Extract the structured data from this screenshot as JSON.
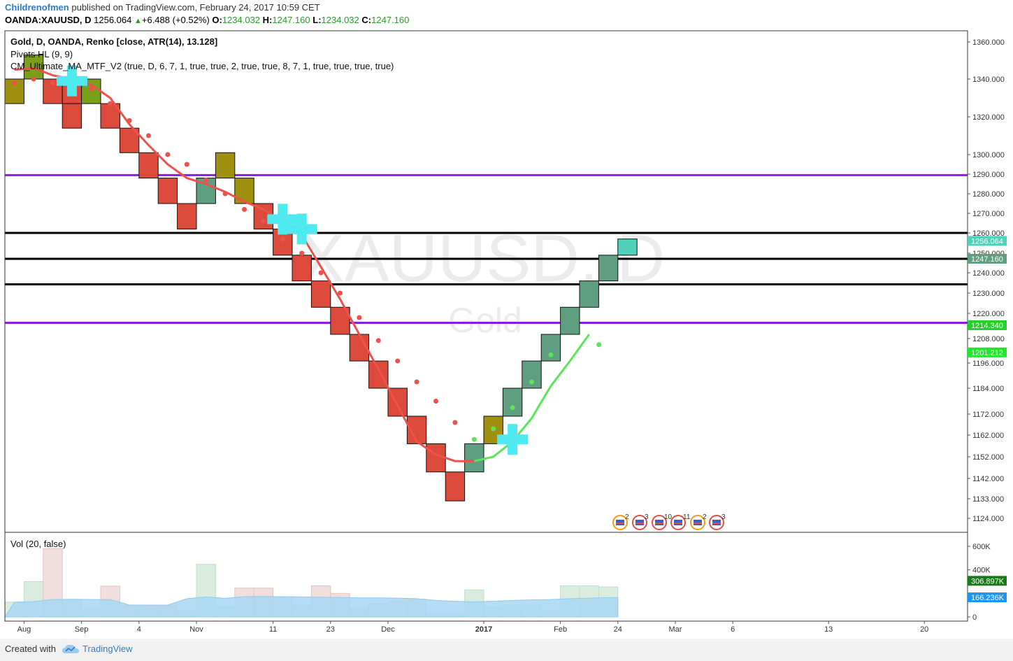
{
  "header": {
    "author": "Childrenofmen",
    "published": "published on TradingView.com, February 24, 2017 10:59 CET",
    "symbol_line": "OANDA:XAUUSD, D",
    "last": "1256.064",
    "change": "+6.488 (+0.52%)",
    "o_label": "O:",
    "o": "1234.032",
    "h_label": "H:",
    "h": "1247.160",
    "l_label": "L:",
    "l": "1234.032",
    "c_label": "C:",
    "c": "1247.160"
  },
  "legend": {
    "main": "Gold, D, OANDA, Renko [close, ATR(14), 13.128]",
    "pivots": "Pivots HL (9, 9)",
    "ma": "CM_Ultimate_MA_MTF_V2 (true, D, 6, 7, 1, true, true, 2, true, true, 8, 7, 1, true, true, true, true)",
    "volume": "Vol (20, false)"
  },
  "watermark": {
    "symbol": "XAUUSD, D",
    "name": "Gold"
  },
  "footer": {
    "created": "Created with",
    "brand": "TradingView"
  },
  "colors": {
    "up": "#5f9e80",
    "down": "#dc4a3c",
    "olive": "#a0900f",
    "lime": "#7aa01a",
    "teal": "#4fd1bb",
    "ma_down": "#f0504a",
    "ma_up": "#5ae55a",
    "purple": "#8a1ce6",
    "cross": "#4feaf0",
    "vol_up": "#d9ecdf",
    "vol_down": "#f1dede",
    "vol_ma": "#a8d8f5"
  },
  "events": {
    "icon": "flag-event-icon",
    "counts": [
      "2",
      "3",
      "10",
      "11",
      "2",
      "3"
    ]
  },
  "chart_data": {
    "type": "renko",
    "y_axis": {
      "labels": [
        "1360.000",
        "1340.000",
        "1320.000",
        "1300.000",
        "1290.000",
        "1280.000",
        "1270.000",
        "1260.000",
        "1250.000",
        "1240.000",
        "1230.000",
        "1220.000",
        "1208.000",
        "1196.000",
        "1184.000",
        "1172.000",
        "1162.000",
        "1152.000",
        "1142.000",
        "1133.000",
        "1124.000"
      ],
      "label_values": [
        1360,
        1340,
        1320,
        1300,
        1290,
        1280,
        1270,
        1260,
        1250,
        1240,
        1230,
        1220,
        1208,
        1196,
        1184,
        1172,
        1162,
        1152,
        1142,
        1133,
        1124
      ]
    },
    "x_axis": {
      "labels": [
        "Aug",
        "Sep",
        "4",
        "Nov",
        "11",
        "23",
        "Dec",
        "2017",
        "Feb",
        "24",
        "Mar",
        "6",
        "13",
        "20"
      ],
      "label_bars": [
        1,
        4,
        7,
        10,
        14,
        17,
        20,
        25,
        29,
        32,
        35,
        38,
        43,
        48
      ],
      "bold": [
        "2017"
      ]
    },
    "bricks": [
      {
        "i": 0,
        "o": 1340,
        "c": 1327,
        "col": "olive"
      },
      {
        "i": 1,
        "o": 1340,
        "c": 1353,
        "col": "lime"
      },
      {
        "i": 2,
        "o": 1340,
        "c": 1327,
        "col": "down"
      },
      {
        "i": 3,
        "o": 1340,
        "c": 1327,
        "col": "down"
      },
      {
        "i": 4,
        "o": 1327,
        "c": 1340,
        "col": "lime"
      },
      {
        "i": 3,
        "o": 1327,
        "c": 1314,
        "col": "down"
      },
      {
        "i": 5,
        "o": 1327,
        "c": 1314,
        "col": "down"
      },
      {
        "i": 6,
        "o": 1314,
        "c": 1301,
        "col": "down"
      },
      {
        "i": 7,
        "o": 1301,
        "c": 1288,
        "col": "down"
      },
      {
        "i": 8,
        "o": 1288,
        "c": 1275,
        "col": "down"
      },
      {
        "i": 9,
        "o": 1275,
        "c": 1262,
        "col": "down"
      },
      {
        "i": 10,
        "o": 1275,
        "c": 1288,
        "col": "up"
      },
      {
        "i": 11,
        "o": 1288,
        "c": 1301,
        "col": "olive"
      },
      {
        "i": 12,
        "o": 1288,
        "c": 1275,
        "col": "olive"
      },
      {
        "i": 13,
        "o": 1275,
        "c": 1262,
        "col": "down"
      },
      {
        "i": 14,
        "o": 1262,
        "c": 1249,
        "col": "down"
      },
      {
        "i": 15,
        "o": 1249,
        "c": 1236,
        "col": "down"
      },
      {
        "i": 16,
        "o": 1236,
        "c": 1223,
        "col": "down"
      },
      {
        "i": 17,
        "o": 1223,
        "c": 1210,
        "col": "down"
      },
      {
        "i": 18,
        "o": 1210,
        "c": 1197,
        "col": "down"
      },
      {
        "i": 19,
        "o": 1197,
        "c": 1184,
        "col": "down"
      },
      {
        "i": 20,
        "o": 1184,
        "c": 1171,
        "col": "down"
      },
      {
        "i": 21,
        "o": 1171,
        "c": 1158,
        "col": "down"
      },
      {
        "i": 22,
        "o": 1158,
        "c": 1145,
        "col": "down"
      },
      {
        "i": 23,
        "o": 1145,
        "c": 1132,
        "col": "down"
      },
      {
        "i": 24,
        "o": 1145,
        "c": 1158,
        "col": "up"
      },
      {
        "i": 25,
        "o": 1158,
        "c": 1171,
        "col": "olive"
      },
      {
        "i": 26,
        "o": 1171,
        "c": 1184,
        "col": "up"
      },
      {
        "i": 27,
        "o": 1184,
        "c": 1197,
        "col": "up"
      },
      {
        "i": 28,
        "o": 1197,
        "c": 1210,
        "col": "up"
      },
      {
        "i": 29,
        "o": 1210,
        "c": 1223,
        "col": "up"
      },
      {
        "i": 30,
        "o": 1223,
        "c": 1236,
        "col": "up"
      },
      {
        "i": 31,
        "o": 1236,
        "c": 1249,
        "col": "up"
      },
      {
        "i": 32,
        "o": 1249,
        "c": 1257,
        "col": "teal"
      }
    ],
    "ma_line_down": [
      [
        0,
        1345
      ],
      [
        1,
        1346
      ],
      [
        2,
        1342
      ],
      [
        3,
        1340
      ],
      [
        4,
        1337
      ],
      [
        5,
        1330
      ],
      [
        6,
        1316
      ],
      [
        7,
        1305
      ],
      [
        8,
        1295
      ],
      [
        9,
        1288
      ],
      [
        10,
        1285
      ],
      [
        11,
        1281
      ],
      [
        12,
        1276
      ],
      [
        13,
        1272
      ],
      [
        14,
        1266
      ],
      [
        15,
        1259
      ],
      [
        16,
        1243
      ],
      [
        17,
        1227
      ],
      [
        18,
        1210
      ],
      [
        19,
        1193
      ],
      [
        20,
        1176
      ],
      [
        21,
        1159
      ],
      [
        22,
        1153
      ],
      [
        23,
        1150
      ],
      [
        24,
        1150
      ]
    ],
    "ma_line_up": [
      [
        24,
        1150
      ],
      [
        25,
        1152
      ],
      [
        26,
        1159
      ],
      [
        27,
        1170
      ],
      [
        28,
        1185
      ],
      [
        29,
        1197
      ],
      [
        30,
        1210
      ]
    ],
    "ma_dots_down": [
      [
        0,
        1338
      ],
      [
        1,
        1340
      ],
      [
        2,
        1338
      ],
      [
        3,
        1337
      ],
      [
        4,
        1335
      ],
      [
        5,
        1327
      ],
      [
        6,
        1318
      ],
      [
        7,
        1310
      ],
      [
        8,
        1300
      ],
      [
        9,
        1295
      ],
      [
        10,
        1287
      ],
      [
        11,
        1280
      ],
      [
        12,
        1272
      ],
      [
        13,
        1266
      ],
      [
        14,
        1257
      ],
      [
        15,
        1250
      ],
      [
        16,
        1240
      ],
      [
        17,
        1230
      ],
      [
        18,
        1218
      ],
      [
        19,
        1207
      ],
      [
        20,
        1197
      ],
      [
        21,
        1187
      ],
      [
        22,
        1178
      ],
      [
        23,
        1168
      ]
    ],
    "ma_dots_up": [
      [
        24,
        1160
      ],
      [
        25,
        1165
      ],
      [
        26,
        1175
      ],
      [
        27,
        1187
      ],
      [
        28,
        1200
      ],
      [
        30,
        1205
      ]
    ],
    "crosses": [
      [
        3,
        1339
      ],
      [
        14,
        1267
      ],
      [
        15,
        1262
      ],
      [
        26,
        1160
      ]
    ],
    "h_lines": [
      {
        "v": 1289.5,
        "color": "purple"
      },
      {
        "v": 1260,
        "color": "black"
      },
      {
        "v": 1247.16,
        "color": "black"
      },
      {
        "v": 1234.3,
        "color": "black"
      },
      {
        "v": 1215.5,
        "color": "purple"
      }
    ],
    "price_tags": [
      {
        "v": 1256.064,
        "text": "1256.064",
        "bg": "#4fd1bb"
      },
      {
        "v": 1247.16,
        "text": "1247.160",
        "bg": "#5f9e80"
      },
      {
        "v": 1214.34,
        "text": "1214.340",
        "bg": "#22d12a"
      },
      {
        "v": 1201.212,
        "text": "1201.212",
        "bg": "#22e62a"
      }
    ],
    "volume": {
      "axis_labels": [
        "600K",
        "400K",
        "0"
      ],
      "axis_values": [
        600000,
        400000,
        0
      ],
      "bars": [
        {
          "i": 0,
          "v": 126000,
          "up": true
        },
        {
          "i": 1,
          "v": 300000,
          "up": true
        },
        {
          "i": 2,
          "v": 580000,
          "up": false
        },
        {
          "i": 3,
          "v": 140000,
          "up": false
        },
        {
          "i": 4,
          "v": 75000,
          "up": true
        },
        {
          "i": 5,
          "v": 262000,
          "up": false
        },
        {
          "i": 6,
          "v": 100000,
          "up": false
        },
        {
          "i": 7,
          "v": 100000,
          "up": false
        },
        {
          "i": 8,
          "v": 100000,
          "up": false
        },
        {
          "i": 9,
          "v": 55000,
          "up": false
        },
        {
          "i": 10,
          "v": 447000,
          "up": true
        },
        {
          "i": 11,
          "v": 90000,
          "up": true
        },
        {
          "i": 12,
          "v": 245000,
          "up": false
        },
        {
          "i": 13,
          "v": 245000,
          "up": false
        },
        {
          "i": 14,
          "v": 170000,
          "up": false
        },
        {
          "i": 15,
          "v": 105000,
          "up": false
        },
        {
          "i": 16,
          "v": 264000,
          "up": false
        },
        {
          "i": 17,
          "v": 200000,
          "up": false
        },
        {
          "i": 18,
          "v": 75000,
          "up": false
        },
        {
          "i": 19,
          "v": 110000,
          "up": false
        },
        {
          "i": 20,
          "v": 133000,
          "up": false
        },
        {
          "i": 21,
          "v": 150000,
          "up": false
        },
        {
          "i": 22,
          "v": 25000,
          "up": false
        },
        {
          "i": 23,
          "v": 25000,
          "up": false
        },
        {
          "i": 24,
          "v": 230000,
          "up": true
        },
        {
          "i": 25,
          "v": 85000,
          "up": true
        },
        {
          "i": 26,
          "v": 105000,
          "up": true
        },
        {
          "i": 27,
          "v": 105000,
          "up": true
        },
        {
          "i": 28,
          "v": 60000,
          "up": true
        },
        {
          "i": 29,
          "v": 264000,
          "up": true
        },
        {
          "i": 30,
          "v": 264000,
          "up": true
        },
        {
          "i": 31,
          "v": 255000,
          "up": true
        }
      ],
      "ma": [
        [
          0,
          125000
        ],
        [
          1,
          130000
        ],
        [
          2,
          148000
        ],
        [
          3,
          150000
        ],
        [
          4,
          148000
        ],
        [
          5,
          147000
        ],
        [
          6,
          102000
        ],
        [
          7,
          100000
        ],
        [
          8,
          101000
        ],
        [
          9,
          155000
        ],
        [
          10,
          170000
        ],
        [
          11,
          158000
        ],
        [
          12,
          172000
        ],
        [
          13,
          173000
        ],
        [
          14,
          172000
        ],
        [
          15,
          170000
        ],
        [
          16,
          168000
        ],
        [
          17,
          165000
        ],
        [
          18,
          162000
        ],
        [
          19,
          162000
        ],
        [
          20,
          160000
        ],
        [
          21,
          155000
        ],
        [
          22,
          140000
        ],
        [
          23,
          133000
        ],
        [
          24,
          128000
        ],
        [
          25,
          134000
        ],
        [
          26,
          140000
        ],
        [
          27,
          145000
        ],
        [
          28,
          148000
        ],
        [
          29,
          155000
        ],
        [
          30,
          160000
        ],
        [
          31,
          164000
        ]
      ],
      "tags": [
        {
          "v": 306897,
          "text": "306.897K",
          "bg": "#1a7a1a"
        },
        {
          "v": 166236,
          "text": "166.236K",
          "bg": "#1e96f0"
        }
      ]
    }
  }
}
